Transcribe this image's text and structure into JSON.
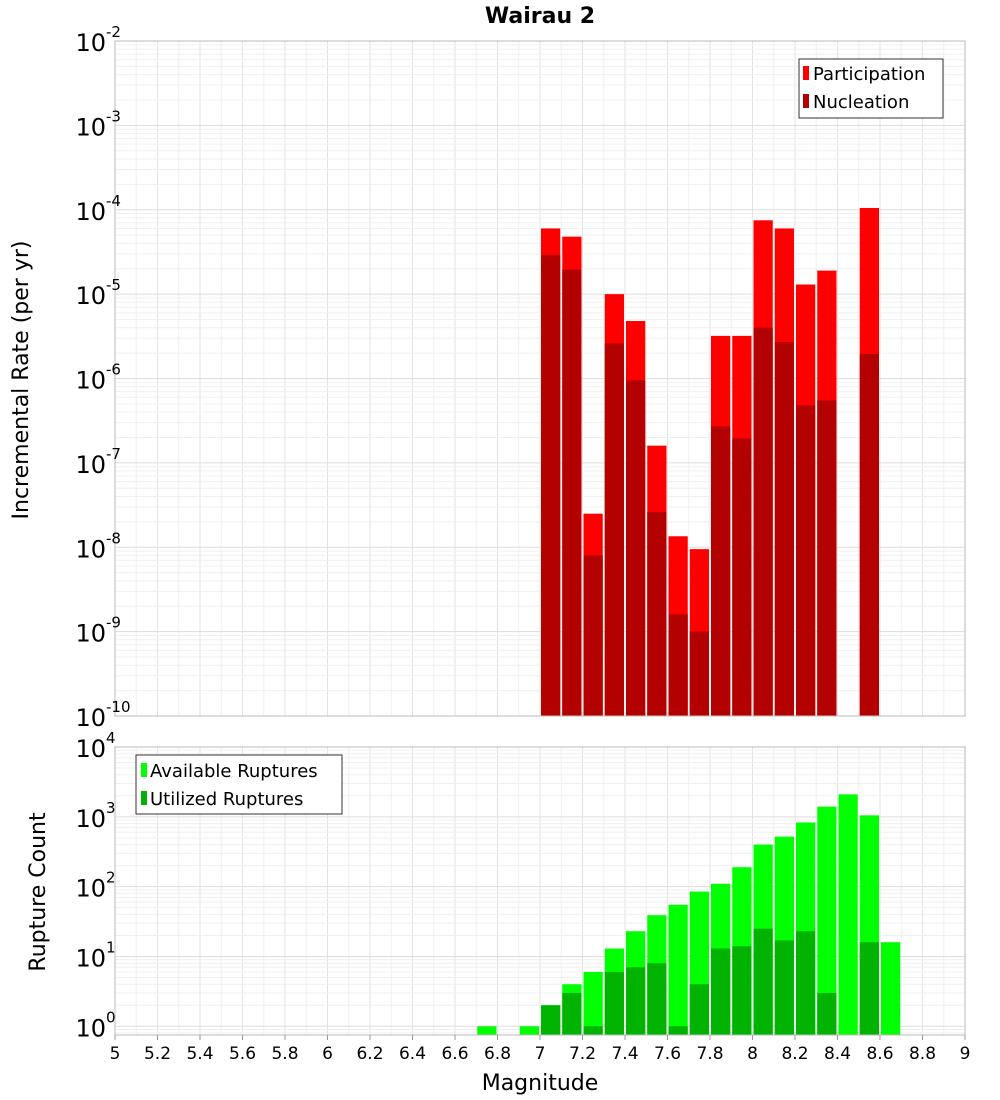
{
  "chart_data": [
    {
      "type": "bar",
      "title": "Wairau 2",
      "ylabel": "Incremental Rate (per yr)",
      "xlabel": "",
      "yscale": "log",
      "ylim": [
        1e-10,
        0.01
      ],
      "xlim": [
        5,
        9
      ],
      "grid": true,
      "legend_position": "top-right",
      "ytick_exponents": [
        "-10",
        "-9",
        "-8",
        "-7",
        "-6",
        "-5",
        "-4",
        "-3",
        "-2"
      ],
      "x": [
        7.05,
        7.15,
        7.25,
        7.35,
        7.45,
        7.55,
        7.65,
        7.75,
        7.85,
        7.95,
        8.05,
        8.15,
        8.25,
        8.35,
        8.55
      ],
      "series": [
        {
          "name": "Participation",
          "color": "#ff0000",
          "values": [
            6e-05,
            4.8e-05,
            2.5e-08,
            1e-05,
            4.8e-06,
            1.6e-07,
            1.35e-08,
            9.5e-09,
            3.2e-06,
            3.2e-06,
            7.5e-05,
            6e-05,
            1.3e-05,
            1.9e-05,
            0.000105
          ]
        },
        {
          "name": "Nucleation",
          "color": "#b30000",
          "values": [
            2.9e-05,
            1.95e-05,
            8e-09,
            2.6e-06,
            9.5e-07,
            2.6e-08,
            1.6e-09,
            1e-09,
            2.7e-07,
            1.95e-07,
            4e-06,
            2.7e-06,
            4.8e-07,
            5.5e-07,
            1.95e-06
          ]
        }
      ]
    },
    {
      "type": "bar",
      "title": "",
      "ylabel": "Rupture Count",
      "xlabel": "Magnitude",
      "yscale": "log",
      "ylim": [
        0.75,
        10000
      ],
      "xlim": [
        5,
        9
      ],
      "grid": true,
      "legend_position": "top-left",
      "ytick_exponents": [
        "0",
        "1",
        "2",
        "3",
        "4"
      ],
      "xtick_labels": [
        "5",
        "5.2",
        "5.4",
        "5.6",
        "5.8",
        "6",
        "6.2",
        "6.4",
        "6.6",
        "6.8",
        "7",
        "7.2",
        "7.4",
        "7.6",
        "7.8",
        "8",
        "8.2",
        "8.4",
        "8.6",
        "8.8",
        "9"
      ],
      "x": [
        6.75,
        6.95,
        7.05,
        7.15,
        7.25,
        7.35,
        7.45,
        7.55,
        7.65,
        7.75,
        7.85,
        7.95,
        8.05,
        8.15,
        8.25,
        8.35,
        8.45,
        8.55,
        8.65
      ],
      "series": [
        {
          "name": "Available Ruptures",
          "color": "#00ff00",
          "values": [
            1,
            1,
            2,
            4,
            6,
            13,
            23,
            39,
            55,
            85,
            110,
            190,
            400,
            520,
            830,
            1400,
            2100,
            1050,
            16
          ]
        },
        {
          "name": "Utilized Ruptures",
          "color": "#00b300",
          "values": [
            0,
            0,
            2,
            3,
            1,
            6,
            7,
            8,
            1,
            4,
            13,
            14,
            25,
            17,
            23,
            3,
            0,
            16,
            0
          ]
        }
      ]
    }
  ]
}
